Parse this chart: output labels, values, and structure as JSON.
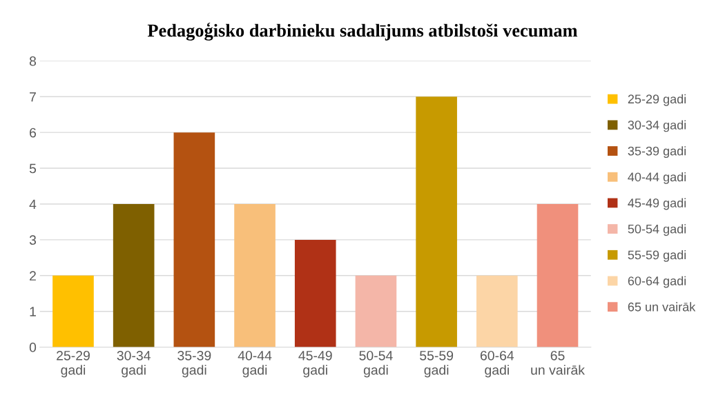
{
  "chart_data": {
    "type": "bar",
    "title": "Pedagoģisko darbinieku sadalījums atbilstoši vecumam",
    "categories": [
      "25-29 gadi",
      "30-34 gadi",
      "35-39 gadi",
      "40-44 gadi",
      "45-49 gadi",
      "50-54 gadi",
      "55-59 gadi",
      "60-64 gadi",
      "65 un vairāk"
    ],
    "series": [
      {
        "name": "25-29 gadi",
        "color": "#ffc000",
        "values": [
          2,
          null,
          null,
          null,
          null,
          null,
          null,
          null,
          null
        ]
      },
      {
        "name": "30-34 gadi",
        "color": "#7f6000",
        "values": [
          null,
          4,
          null,
          null,
          null,
          null,
          null,
          null,
          null
        ]
      },
      {
        "name": "35-39 gadi",
        "color": "#b45211",
        "values": [
          null,
          null,
          6,
          null,
          null,
          null,
          null,
          null,
          null
        ]
      },
      {
        "name": "40-44 gadi",
        "color": "#f8bf7a",
        "values": [
          null,
          null,
          null,
          4,
          null,
          null,
          null,
          null,
          null
        ]
      },
      {
        "name": "45-49 gadi",
        "color": "#b03116",
        "values": [
          null,
          null,
          null,
          null,
          3,
          null,
          null,
          null,
          null
        ]
      },
      {
        "name": "50-54 gadi",
        "color": "#f4b6a8",
        "values": [
          null,
          null,
          null,
          null,
          null,
          2,
          null,
          null,
          null
        ]
      },
      {
        "name": "55-59 gadi",
        "color": "#c79a00",
        "values": [
          null,
          null,
          null,
          null,
          null,
          null,
          7,
          null,
          null
        ]
      },
      {
        "name": "60-64 gadi",
        "color": "#fcd5a6",
        "values": [
          null,
          null,
          null,
          null,
          null,
          null,
          null,
          2,
          null
        ]
      },
      {
        "name": "65 un vairāk",
        "color": "#f0907c",
        "values": [
          null,
          null,
          null,
          null,
          null,
          null,
          null,
          null,
          4
        ]
      }
    ],
    "ylim": [
      0,
      8
    ],
    "yticks": [
      0,
      1,
      2,
      3,
      4,
      5,
      6,
      7,
      8
    ],
    "grid": "y",
    "legend": "right"
  }
}
